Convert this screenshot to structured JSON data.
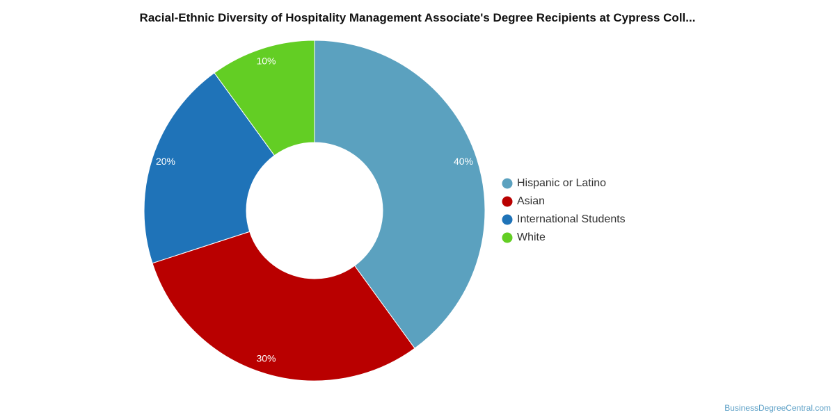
{
  "title": "Racial-Ethnic Diversity of Hospitality Management Associate's Degree Recipients at Cypress Coll...",
  "watermark": "BusinessDegreeCentral.com",
  "chart_data": {
    "type": "pie",
    "donut": true,
    "categories": [
      "Hispanic or Latino",
      "Asian",
      "International Students",
      "White"
    ],
    "values": [
      40,
      30,
      20,
      10
    ],
    "labels": [
      "40%",
      "30%",
      "20%",
      "10%"
    ],
    "colors": [
      "#5ba1bf",
      "#b90000",
      "#1f73b8",
      "#63ce24"
    ],
    "legend_position": "right"
  }
}
